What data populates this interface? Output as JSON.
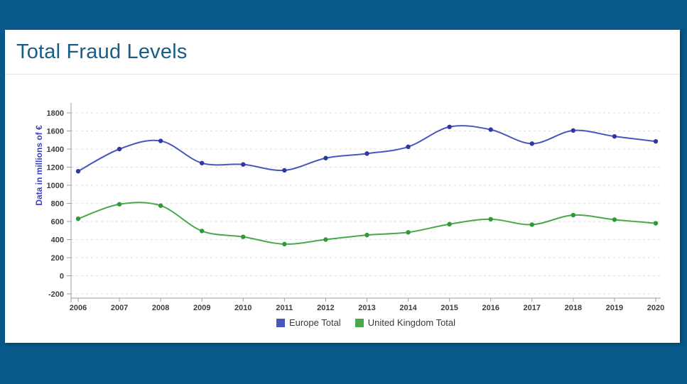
{
  "window": {
    "background_color": "#085889"
  },
  "card": {
    "title": "Total Fraud Levels",
    "title_color": "#175d87",
    "background_color": "#ffffff"
  },
  "chart_data": {
    "type": "line",
    "title": "Total Fraud Levels",
    "ylabel": "Data in millions of €",
    "ylabel_color": "#3a3ec2",
    "xlabel": "",
    "x": [
      "2006",
      "2007",
      "2008",
      "2009",
      "2010",
      "2011",
      "2012",
      "2013",
      "2014",
      "2015",
      "2016",
      "2017",
      "2018",
      "2019",
      "2020"
    ],
    "yticks": [
      1800,
      1600,
      1400,
      1200,
      1000,
      800,
      600,
      400,
      200,
      0,
      -200
    ],
    "ylim": [
      -200,
      1800
    ],
    "grid": "horizontal-dashed",
    "grid_color": "#dcdcdc",
    "axis_color": "#9e9e9e",
    "tick_label_color": "#3d3d3d",
    "legend_position": "bottom-center",
    "series": [
      {
        "name": "Europe Total",
        "color": "#4757bf",
        "point_color": "#2c3a9c",
        "values": [
          1155,
          1400,
          1490,
          1245,
          1230,
          1165,
          1300,
          1350,
          1425,
          1645,
          1615,
          1460,
          1605,
          1540,
          1485
        ]
      },
      {
        "name": "United Kingdom Total",
        "color": "#48a84c",
        "point_color": "#2e9a37",
        "values": [
          630,
          790,
          775,
          495,
          430,
          350,
          400,
          450,
          480,
          570,
          625,
          565,
          670,
          620,
          580
        ]
      }
    ]
  }
}
